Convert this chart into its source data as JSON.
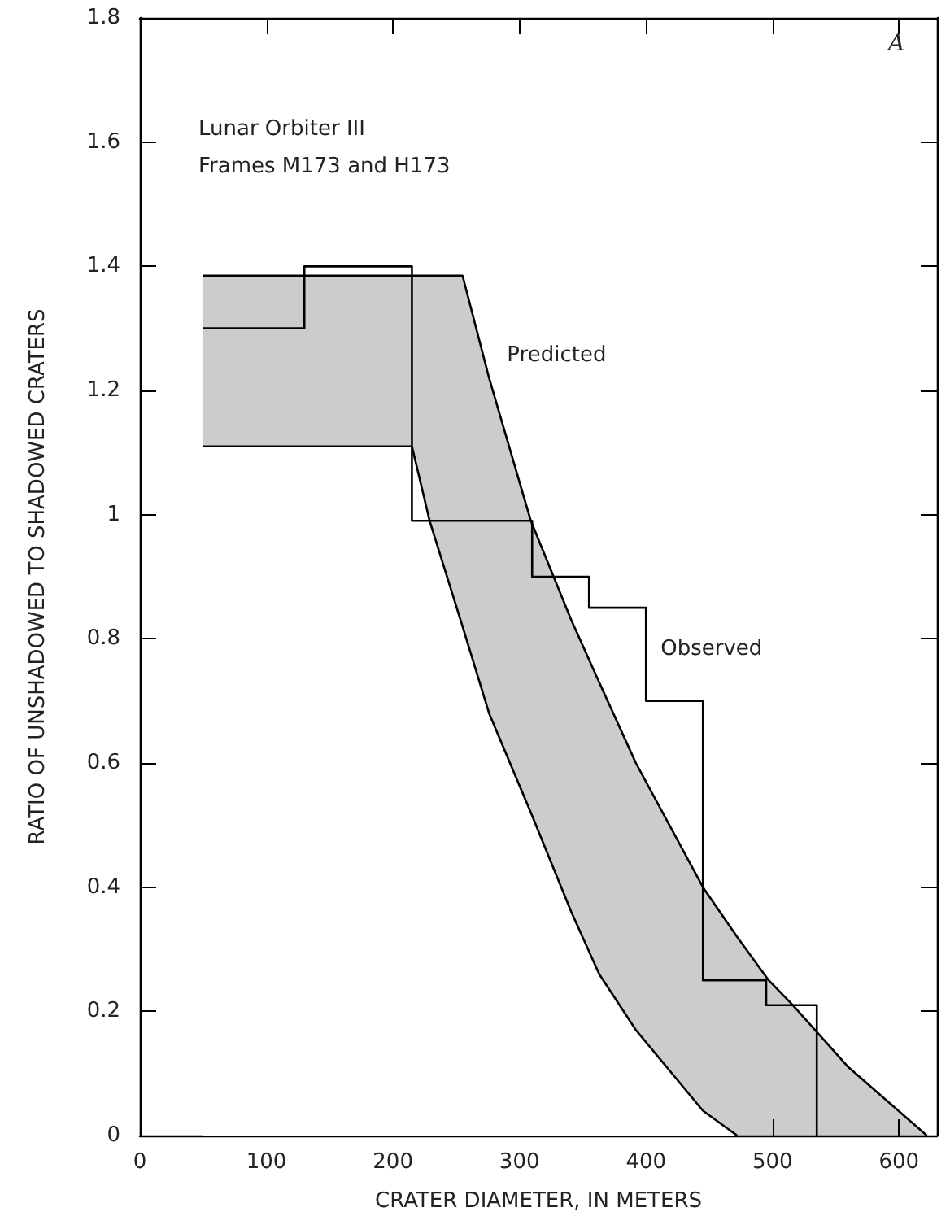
{
  "chart_data": {
    "type": "step",
    "xlabel": "CRATER DIAMETER, IN METERS",
    "ylabel": "RATIO OF UNSHADOWED TO SHADOWED CRATERS",
    "annotations": [
      "Lunar Orbiter III\nFrames M173 and H173",
      "A"
    ],
    "xlim": [
      0,
      630
    ],
    "xticks": [
      0,
      100,
      200,
      300,
      400,
      500,
      600
    ],
    "ylim": [
      0,
      1.8
    ],
    "yticks": [
      0,
      0.2,
      0.4,
      0.6,
      0.8,
      1.0,
      1.2,
      1.4,
      1.6,
      1.8
    ],
    "grid": false,
    "legend": false,
    "marker": "none",
    "series": [
      {
        "name": "Predicted",
        "type": "area",
        "color": "#000000",
        "x": [
          50,
          215,
          229,
          255,
          276,
          309,
          341,
          363,
          392,
          445,
          472,
          497,
          516,
          560,
          622
        ],
        "values": [
          1.385,
          1.385,
          1.385,
          1.385,
          1.22,
          0.99,
          0.83,
          0.73,
          0.6,
          0.4,
          0.32,
          0.25,
          0.21,
          0.11,
          0
        ]
      },
      {
        "type": "area",
        "color": "#000000",
        "x": [
          50,
          215,
          229,
          255,
          276,
          309,
          341,
          363,
          392,
          445,
          472
        ],
        "values": [
          1.11,
          1.11,
          0.99,
          0.82,
          0.68,
          0.52,
          0.36,
          0.26,
          0.17,
          0.04,
          0
        ]
      },
      {
        "name": "Observed",
        "color": "#000000",
        "x": [
          50,
          130,
          215,
          310,
          355,
          400,
          445,
          495,
          535
        ],
        "values": [
          1.3,
          1.4,
          0.99,
          0.9,
          0.85,
          0.7,
          0.25,
          0.21,
          0
        ]
      }
    ]
  }
}
